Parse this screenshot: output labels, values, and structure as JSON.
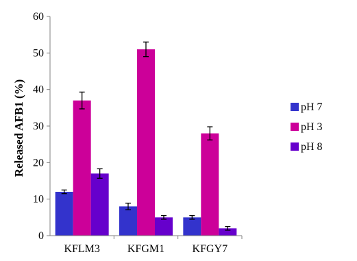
{
  "chart_data": {
    "type": "bar",
    "title": "",
    "xlabel": "",
    "ylabel": "Released AFB1 (%)",
    "ylim": [
      0,
      60
    ],
    "yticks": [
      0,
      10,
      20,
      30,
      40,
      50,
      60
    ],
    "grid": false,
    "legend_position": "right",
    "categories": [
      "KFLM3",
      "KFGM1",
      "KFGY7"
    ],
    "series": [
      {
        "name": "pH 7",
        "color": "#3333cc",
        "values": [
          12,
          8,
          5
        ],
        "errors": [
          0.5,
          0.9,
          0.5
        ]
      },
      {
        "name": "pH 3",
        "color": "#cc0099",
        "values": [
          37,
          51,
          28
        ],
        "errors": [
          2.3,
          2.0,
          1.8
        ]
      },
      {
        "name": "pH 8",
        "color": "#6600cc",
        "values": [
          17,
          5,
          2
        ],
        "errors": [
          1.3,
          0.5,
          0.5
        ]
      }
    ]
  }
}
